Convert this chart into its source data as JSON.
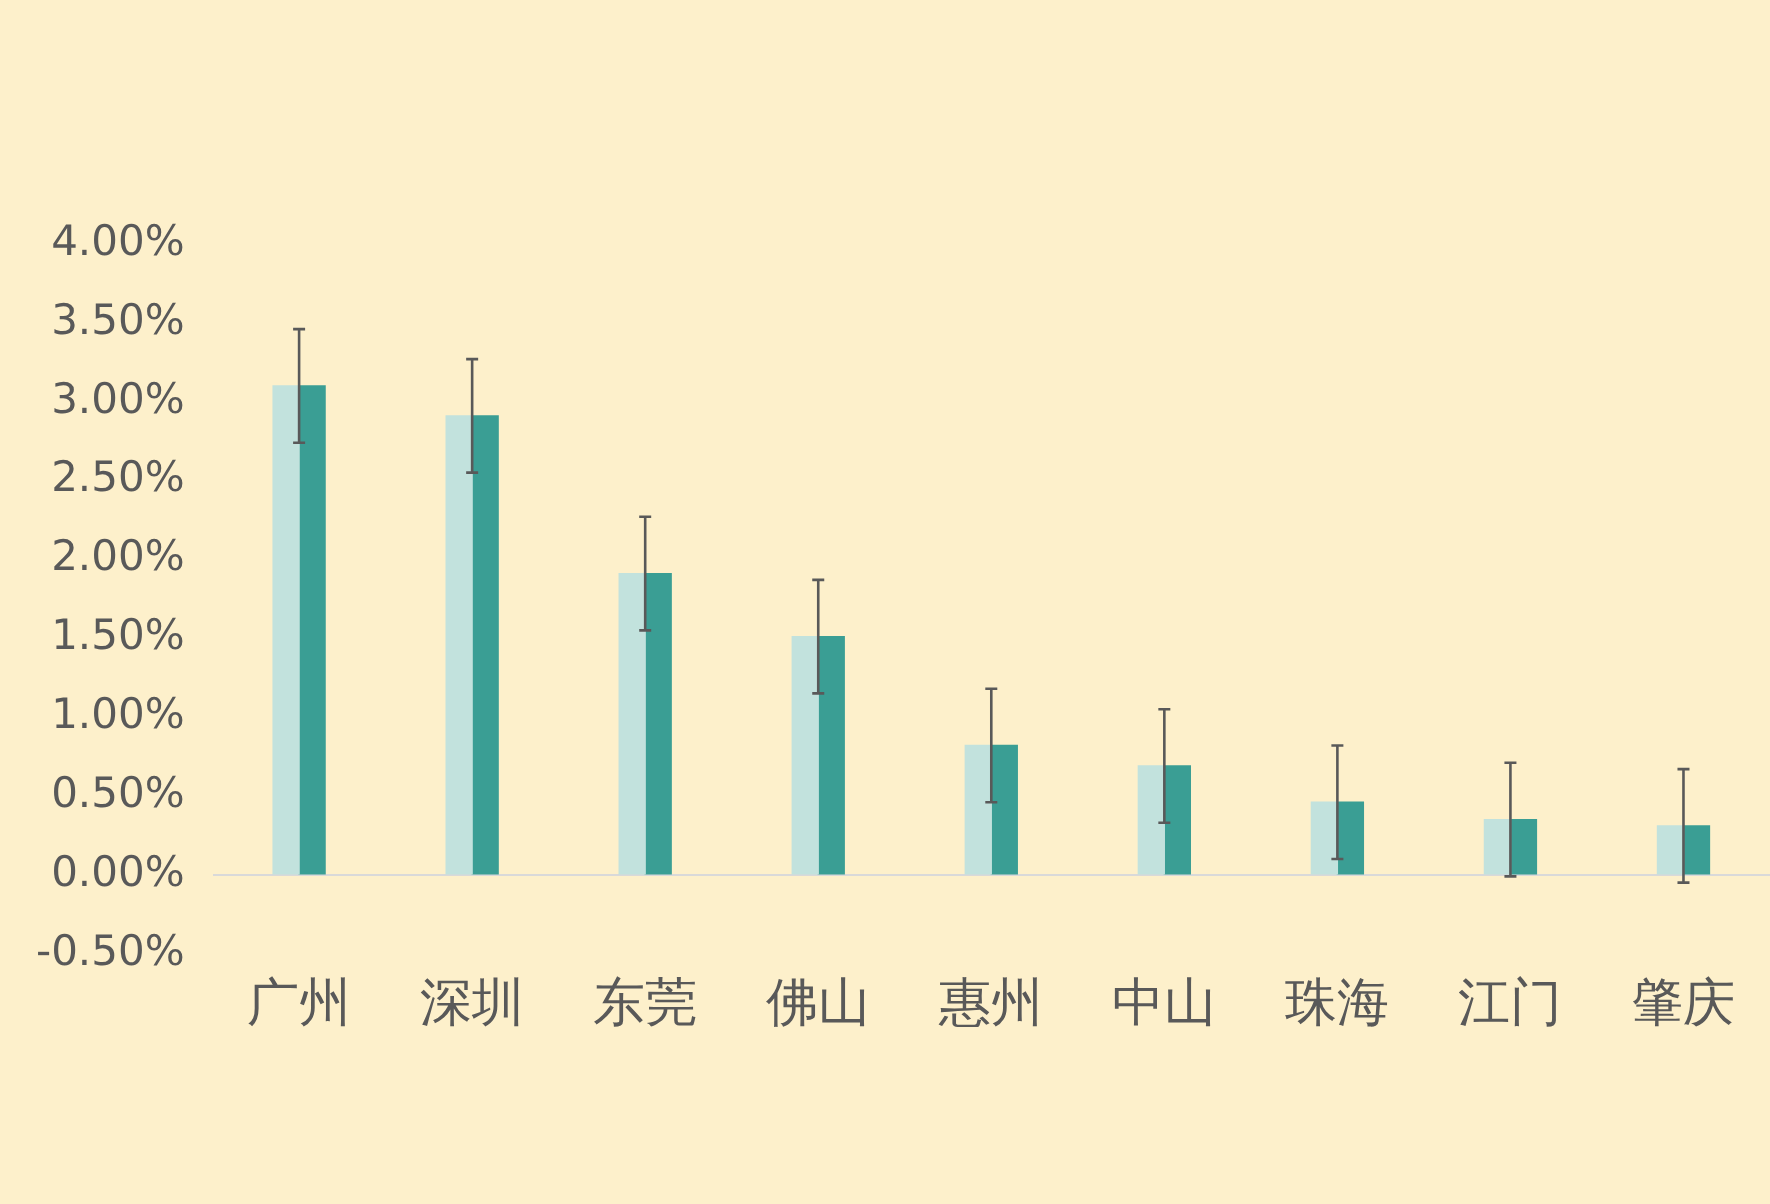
{
  "chart_data": {
    "type": "bar",
    "categories": [
      "广州",
      "深圳",
      "东莞",
      "佛山",
      "惠州",
      "中山",
      "珠海",
      "江门",
      "肇庆"
    ],
    "series": [
      {
        "color": "#c2e2dd",
        "values": [
          3.1,
          2.91,
          1.91,
          1.51,
          0.82,
          0.69,
          0.46,
          0.35,
          0.31
        ]
      },
      {
        "color": "#3a9e94",
        "values": [
          3.1,
          2.91,
          1.91,
          1.51,
          0.82,
          0.69,
          0.46,
          0.35,
          0.31
        ],
        "errors": [
          0.36,
          0.36,
          0.36,
          0.36,
          0.36,
          0.36,
          0.36,
          0.36,
          0.36
        ]
      }
    ],
    "ylim": [
      -0.5,
      4
    ],
    "yticks": [
      {
        "value": -0.5,
        "label": "-0.50%"
      },
      {
        "value": 0,
        "label": "0.00%"
      },
      {
        "value": 0.5,
        "label": "0.50%"
      },
      {
        "value": 1,
        "label": "1.00%"
      },
      {
        "value": 1.5,
        "label": "1.50%"
      },
      {
        "value": 2,
        "label": "2.00%"
      },
      {
        "value": 2.5,
        "label": "2.50%"
      },
      {
        "value": 3,
        "label": "3.00%"
      },
      {
        "value": 3.5,
        "label": "3.50%"
      },
      {
        "value": 4,
        "label": "4.00%"
      }
    ],
    "grid": false,
    "legend": false
  }
}
